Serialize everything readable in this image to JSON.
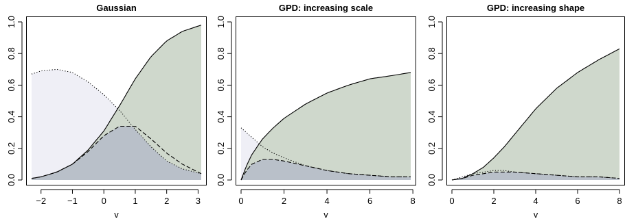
{
  "colors": {
    "region_total": "#cfd8cc",
    "region_overlap": "#b9c0c9",
    "region_dotted": "#efeff6",
    "line": "#000000"
  },
  "chart_data": [
    {
      "type": "area",
      "title": "Gaussian",
      "xlabel": "v",
      "ylabel": "",
      "xlim": [
        -2.3,
        3.1
      ],
      "ylim": [
        0,
        1.0
      ],
      "x_ticks": [
        -2,
        -1,
        0,
        1,
        2,
        3
      ],
      "y_ticks": [
        0.0,
        0.2,
        0.4,
        0.6,
        0.8,
        1.0
      ],
      "x_tick_labels": [
        "−2",
        "−1",
        "0",
        "1",
        "2",
        "3"
      ],
      "y_tick_labels": [
        "0.0",
        "0.2",
        "0.4",
        "0.6",
        "0.8",
        "1.0"
      ],
      "grid": false,
      "series": [
        {
          "style": "solid",
          "x": [
            -2.3,
            -2.0,
            -1.5,
            -1.0,
            -0.5,
            0.0,
            0.5,
            1.0,
            1.5,
            2.0,
            2.5,
            3.1
          ],
          "values": [
            0.01,
            0.02,
            0.05,
            0.1,
            0.19,
            0.31,
            0.47,
            0.64,
            0.78,
            0.88,
            0.94,
            0.98
          ]
        },
        {
          "style": "dotted",
          "x": [
            -2.3,
            -2.0,
            -1.5,
            -1.0,
            -0.5,
            0.0,
            0.5,
            1.0,
            1.5,
            2.0,
            2.5,
            3.1
          ],
          "values": [
            0.67,
            0.69,
            0.7,
            0.68,
            0.62,
            0.54,
            0.44,
            0.32,
            0.21,
            0.12,
            0.07,
            0.04
          ]
        },
        {
          "style": "dashed",
          "x": [
            -2.3,
            -2.0,
            -1.5,
            -1.0,
            -0.5,
            0.0,
            0.5,
            1.0,
            1.5,
            2.0,
            2.5,
            3.1
          ],
          "values": [
            0.01,
            0.02,
            0.05,
            0.1,
            0.18,
            0.28,
            0.34,
            0.34,
            0.26,
            0.17,
            0.1,
            0.04
          ]
        }
      ]
    },
    {
      "type": "area",
      "title": "GPD: increasing scale",
      "xlabel": "v",
      "ylabel": "",
      "xlim": [
        0,
        7.9
      ],
      "ylim": [
        0,
        1.0
      ],
      "x_ticks": [
        0,
        2,
        4,
        6,
        8
      ],
      "y_ticks": [
        0.0,
        0.2,
        0.4,
        0.6,
        0.8,
        1.0
      ],
      "x_tick_labels": [
        "0",
        "2",
        "4",
        "6",
        "8"
      ],
      "y_tick_labels": [
        "0.0",
        "0.2",
        "0.4",
        "0.6",
        "0.8",
        "1.0"
      ],
      "grid": false,
      "series": [
        {
          "style": "solid",
          "x": [
            0,
            0.25,
            0.5,
            1.0,
            1.5,
            2.0,
            3.0,
            4.0,
            5.0,
            6.0,
            7.0,
            7.9
          ],
          "values": [
            0.0,
            0.09,
            0.16,
            0.26,
            0.33,
            0.39,
            0.48,
            0.55,
            0.6,
            0.64,
            0.66,
            0.68
          ]
        },
        {
          "style": "dotted",
          "x": [
            0,
            0.25,
            0.5,
            1.0,
            1.5,
            2.0,
            3.0,
            4.0,
            5.0,
            6.0,
            7.0,
            7.9
          ],
          "values": [
            0.33,
            0.3,
            0.27,
            0.21,
            0.17,
            0.14,
            0.09,
            0.06,
            0.04,
            0.03,
            0.02,
            0.02
          ]
        },
        {
          "style": "dashed",
          "x": [
            0,
            0.25,
            0.5,
            1.0,
            1.5,
            2.0,
            3.0,
            4.0,
            5.0,
            6.0,
            7.0,
            7.9
          ],
          "values": [
            0.0,
            0.06,
            0.1,
            0.13,
            0.13,
            0.12,
            0.09,
            0.06,
            0.04,
            0.03,
            0.02,
            0.02
          ]
        }
      ]
    },
    {
      "type": "area",
      "title": "GPD: increasing shape",
      "xlabel": "v",
      "ylabel": "",
      "xlim": [
        0,
        8.0
      ],
      "ylim": [
        0,
        1.0
      ],
      "x_ticks": [
        0,
        2,
        4,
        6,
        8
      ],
      "y_ticks": [
        0.0,
        0.2,
        0.4,
        0.6,
        0.8,
        1.0
      ],
      "x_tick_labels": [
        "0",
        "2",
        "4",
        "6",
        "8"
      ],
      "y_tick_labels": [
        "0.0",
        "0.2",
        "0.4",
        "0.6",
        "0.8",
        "1.0"
      ],
      "grid": false,
      "series": [
        {
          "style": "solid",
          "x": [
            0,
            0.5,
            1.0,
            1.5,
            2.0,
            2.5,
            3.0,
            4.0,
            5.0,
            6.0,
            7.0,
            8.0
          ],
          "values": [
            0.0,
            0.01,
            0.04,
            0.08,
            0.14,
            0.21,
            0.29,
            0.45,
            0.58,
            0.68,
            0.76,
            0.83
          ]
        },
        {
          "style": "dotted",
          "x": [
            0,
            0.5,
            1.0,
            1.5,
            2.0,
            2.5,
            3.0,
            4.0,
            5.0,
            6.0,
            7.0,
            8.0
          ],
          "values": [
            0.0,
            0.02,
            0.04,
            0.05,
            0.06,
            0.06,
            0.05,
            0.04,
            0.03,
            0.02,
            0.02,
            0.01
          ]
        },
        {
          "style": "dashed",
          "x": [
            0,
            0.5,
            1.0,
            1.5,
            2.0,
            2.5,
            3.0,
            4.0,
            5.0,
            6.0,
            7.0,
            8.0
          ],
          "values": [
            0.0,
            0.01,
            0.03,
            0.04,
            0.05,
            0.05,
            0.05,
            0.04,
            0.03,
            0.02,
            0.02,
            0.01
          ]
        }
      ]
    }
  ]
}
